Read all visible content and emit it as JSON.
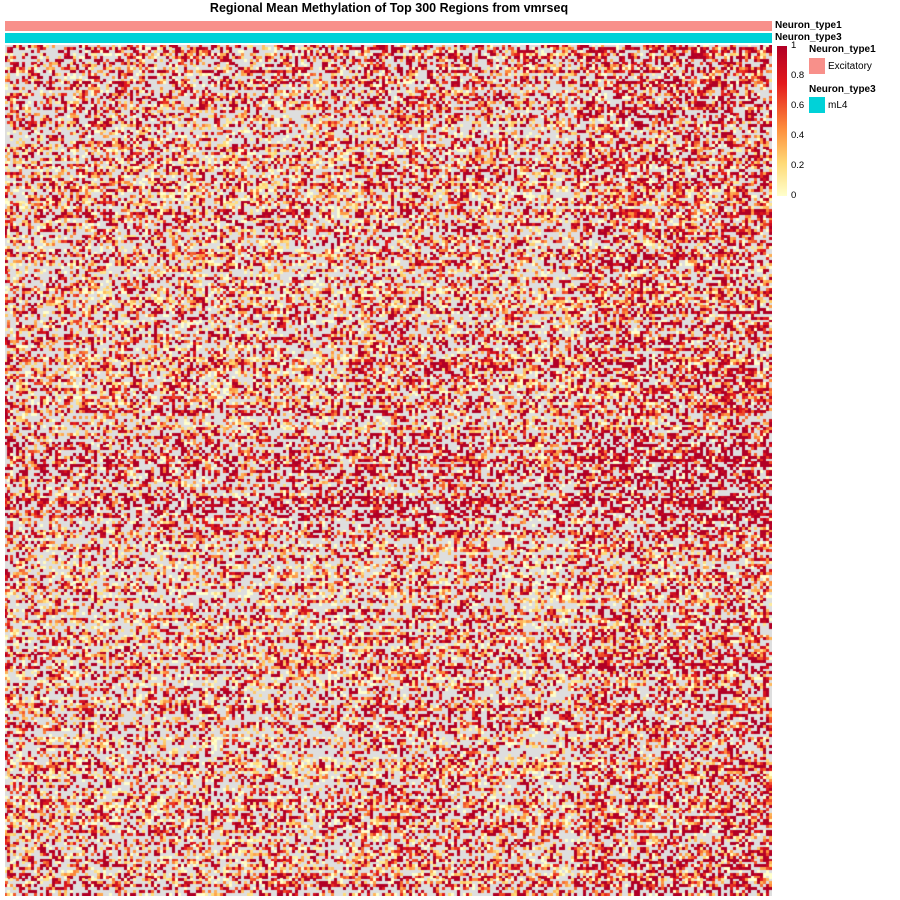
{
  "chart_data": {
    "type": "heatmap",
    "title": "Regional Mean Methylation of Top 300 Regions from vmrseq",
    "n_rows": 300,
    "value_range": [
      0,
      1
    ],
    "missing_color": "#dedede",
    "colorbar": {
      "ticks": [
        "0",
        "0.2",
        "0.4",
        "0.6",
        "0.8",
        "1"
      ],
      "colors": [
        "#ffffcc",
        "#fed976",
        "#fd8d3c",
        "#e31a1c",
        "#b10026"
      ]
    },
    "column_annotations": [
      {
        "name": "Neuron_type1",
        "level": "Excitatory",
        "color": "#f8908a"
      },
      {
        "name": "Neuron_type3",
        "level": "mL4",
        "color": "#00d2d8"
      }
    ],
    "legends": [
      {
        "title": "Neuron_type1",
        "item": "Excitatory",
        "color": "#f8908a"
      },
      {
        "title": "Neuron_type3",
        "item": "mL4",
        "color": "#00d2d8"
      }
    ]
  }
}
